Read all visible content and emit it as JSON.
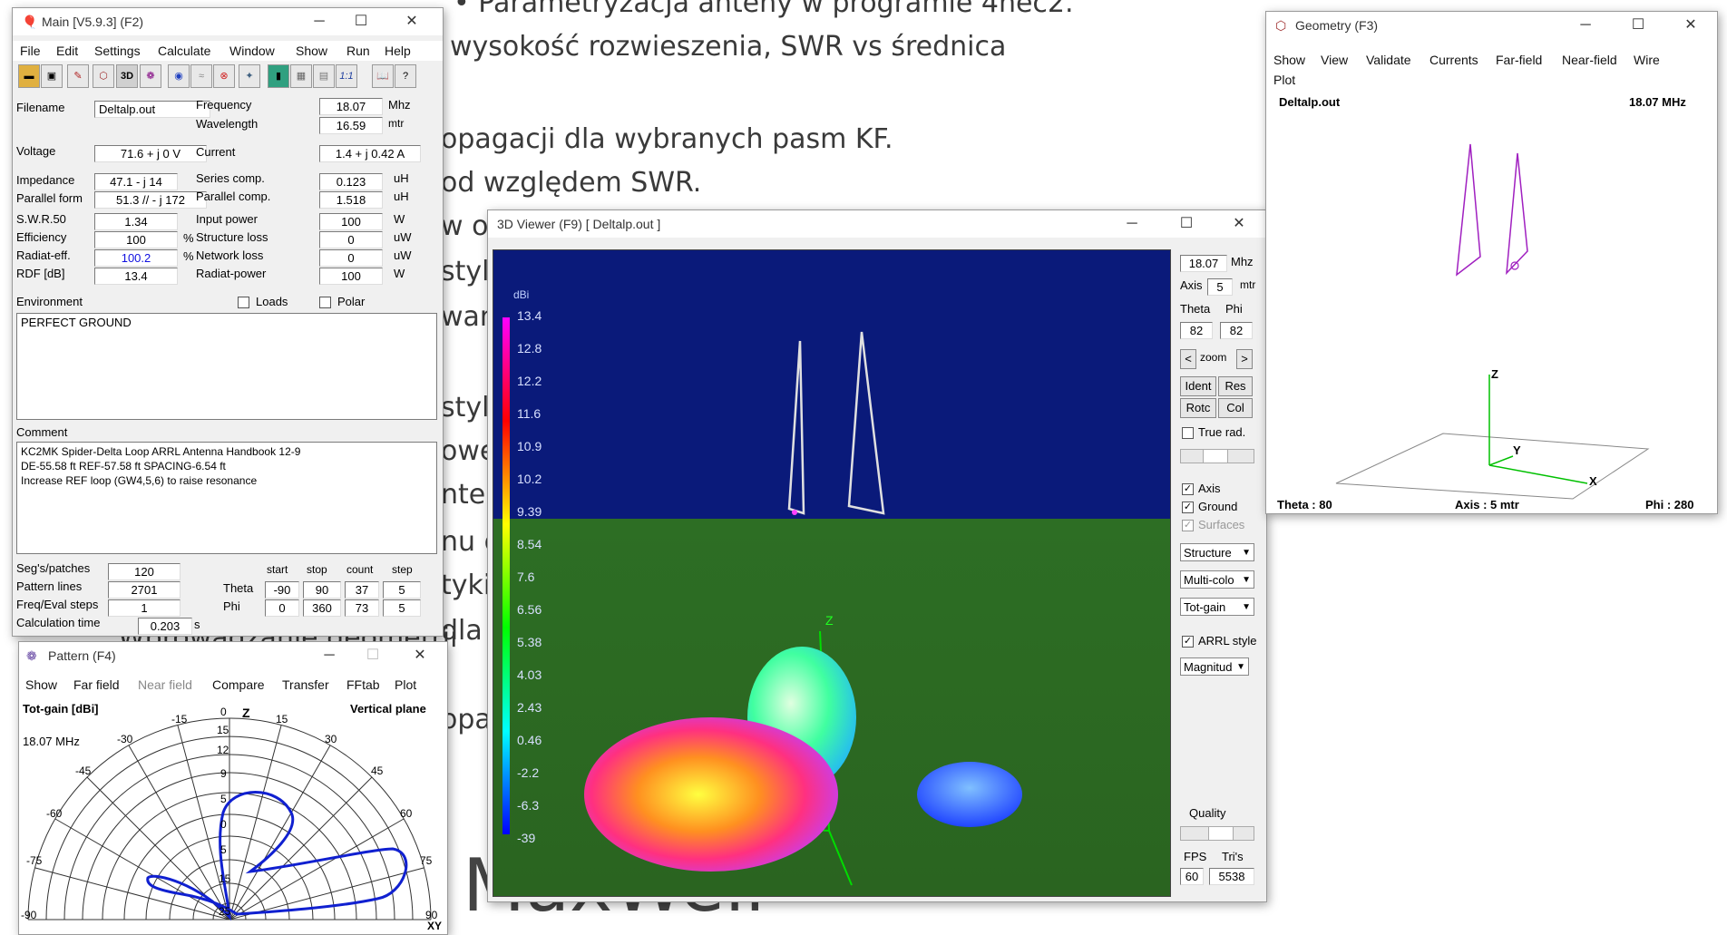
{
  "background_slide": {
    "lines": [
      "• Parametryzacja anteny w programie 4nec2.",
      "wysokość rozwieszenia, SWR vs średnica",
      "opagacji dla wybranych pasm KF.",
      "od względem SWR.",
      "w o",
      "styl",
      "wan",
      "styl",
      "owe",
      "nter",
      "nu g",
      "tyki",
      "dla",
      "Wprowadzanie geometrii",
      "opa",
      "MaxWell"
    ]
  },
  "main_window": {
    "title": "Main [V5.9.3]   (F2)",
    "menu": [
      "File",
      "Edit",
      "Settings",
      "Calculate",
      "Window",
      "Show",
      "Run",
      "Help"
    ],
    "toolbar_icons": [
      "open-icon",
      "save-icon",
      "edit-icon",
      "geometry-icon",
      "3d-icon",
      "pattern-icon",
      "nearfield-icon",
      "compare-icon",
      "smith-icon",
      "sweep-icon",
      "optimize-icon",
      "calc-icon",
      "settings-icon",
      "ratio-icon",
      "book-icon",
      "help-icon"
    ],
    "toolbar_3d": "3D",
    "toolbar_ratio": "1:1",
    "filename_label": "Filename",
    "filename": "Deltalp.out",
    "frequency_label": "Frequency",
    "frequency": "18.07",
    "frequency_unit": "Mhz",
    "wavelength_label": "Wavelength",
    "wavelength": "16.59",
    "wavelength_unit": "mtr",
    "voltage_label": "Voltage",
    "voltage": "71.6 + j 0 V",
    "current_label": "Current",
    "current": "1.4 + j 0.42 A",
    "impedance_label": "Impedance",
    "impedance": "47.1 - j 14",
    "series_label": "Series comp.",
    "series": "0.123",
    "series_unit": "uH",
    "parallel_form_label": "Parallel form",
    "parallel_form": "51.3 // - j 172",
    "parallel_comp_label": "Parallel comp.",
    "parallel_comp": "1.518",
    "parallel_comp_unit": "uH",
    "swr_label": "S.W.R.50",
    "swr": "1.34",
    "input_power_label": "Input power",
    "input_power": "100",
    "input_power_unit": "W",
    "efficiency_label": "Efficiency",
    "efficiency": "100",
    "efficiency_unit": "%",
    "structure_loss_label": "Structure loss",
    "structure_loss": "0",
    "structure_loss_unit": "uW",
    "radiat_eff_label": "Radiat-eff.",
    "radiat_eff": "100.2",
    "radiat_eff_unit": "%",
    "network_loss_label": "Network loss",
    "network_loss": "0",
    "network_loss_unit": "uW",
    "rdf_label": "RDF [dB]",
    "rdf": "13.4",
    "radiat_power_label": "Radiat-power",
    "radiat_power": "100",
    "radiat_power_unit": "W",
    "environment_label": "Environment",
    "loads_label": "Loads",
    "polar_label": "Polar",
    "environment_text": "PERFECT GROUND",
    "comment_label": "Comment",
    "comment_lines": [
      "KC2MK Spider-Delta Loop ARRL Antenna Handbook 12-9",
      "DE-55.58 ft  REF-57.58 ft   SPACING-6.54 ft",
      "Increase REF loop (GW4,5,6) to raise resonance"
    ],
    "segs_label": "Seg's/patches",
    "segs": "120",
    "pattern_lines_label": "Pattern lines",
    "pattern_lines": "2701",
    "freq_steps_label": "Freq/Eval steps",
    "freq_steps": "1",
    "calc_time_label": "Calculation time",
    "calc_time": "0.203",
    "calc_time_unit": "s",
    "grid_headers": [
      "start",
      "stop",
      "count",
      "step"
    ],
    "theta_label": "Theta",
    "theta_values": [
      "-90",
      "90",
      "37",
      "5"
    ],
    "phi_label": "Phi",
    "phi_values": [
      "0",
      "360",
      "73",
      "5"
    ]
  },
  "pattern_window": {
    "title": "Pattern    (F4)",
    "menu": [
      "Show",
      "Far field",
      "Near field",
      "Compare",
      "Transfer",
      "FFtab",
      "Plot"
    ],
    "gain_label": "Tot-gain [dBi]",
    "plane_label": "Vertical plane",
    "freq_label": "18.07 MHz",
    "z_label": "Z",
    "xy_label": "XY",
    "angle_labels": [
      "0",
      "15",
      "-15",
      "30",
      "-30",
      "45",
      "-45",
      "60",
      "-60",
      "75",
      "-75",
      "90",
      "-90"
    ],
    "ring_labels": [
      "15",
      "12",
      "9",
      "5",
      "0",
      "5",
      "15",
      "25"
    ]
  },
  "viewer_window": {
    "title": "3D Viewer (F9)    [  Deltalp.out ]",
    "title_prefix": "3D",
    "dbi_label": "dBi",
    "scale_values": [
      "13.4",
      "12.8",
      "12.2",
      "11.6",
      "10.9",
      "10.2",
      "9.39",
      "8.54",
      "7.6",
      "6.56",
      "5.38",
      "4.03",
      "2.43",
      "0.46",
      "-2.2",
      "-6.3",
      "-39"
    ],
    "freq": "18.07",
    "freq_unit": "Mhz",
    "axis_label": "Axis",
    "axis_value": "5",
    "axis_unit": "mtr",
    "theta_label": "Theta",
    "phi_label": "Phi",
    "theta_value": "82",
    "phi_value": "82",
    "zoom_label": "zoom",
    "zoom_left": "<",
    "zoom_right": ">",
    "ident_label": "Ident",
    "res_label": "Res",
    "rotc_label": "Rotc",
    "col_label": "Col",
    "true_rad_label": "True rad.",
    "axis_cb_label": "Axis",
    "ground_cb_label": "Ground",
    "surfaces_cb_label": "Surfaces",
    "structure_select": "Structure",
    "color_select": "Multi-colo",
    "gain_select": "Tot-gain",
    "arrl_label": "ARRL style",
    "magnitude_select": "Magnitud",
    "quality_label": "Quality",
    "fps_label": "FPS",
    "tris_label": "Tri's",
    "fps_value": "60",
    "tris_value": "5538",
    "axis_letter": "Z"
  },
  "geometry_window": {
    "title": "Geometry    (F3)",
    "menu": [
      "Show",
      "View",
      "Validate",
      "Currents",
      "Far-field",
      "Near-field",
      "Wire"
    ],
    "menu_line2": "Plot",
    "filename": "Deltalp.out",
    "freq": "18.07 MHz",
    "theta_info": "Theta : 80",
    "axis_info": "Axis : 5 mtr",
    "phi_info": "Phi : 280",
    "z_label": "Z",
    "y_label": "Y",
    "x_label": "X"
  },
  "colors": {
    "sky": "#0a1a7a",
    "ground": "#2b6b22",
    "geometry_wire": "#a020c0",
    "pattern_trace": "#1020d0"
  }
}
